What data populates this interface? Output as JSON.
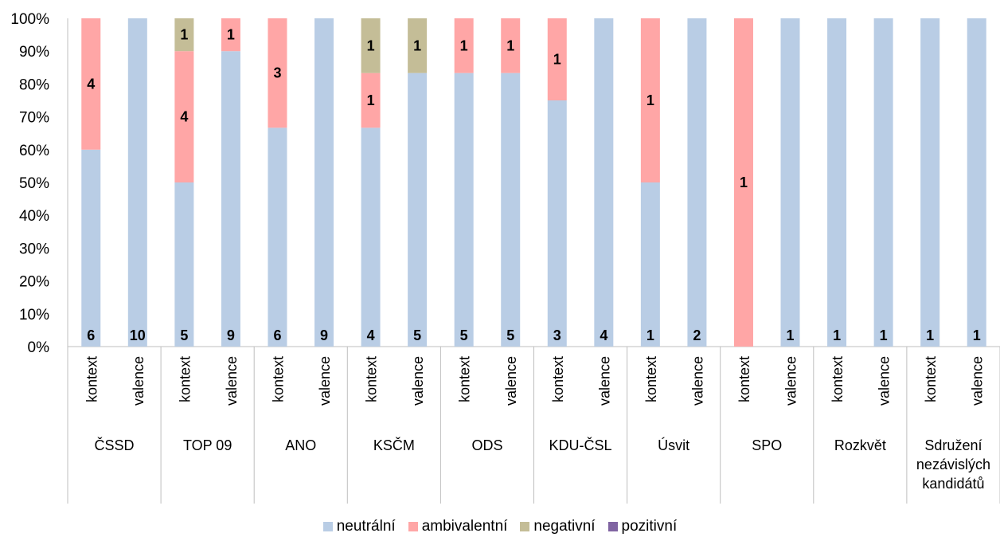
{
  "chart_data": {
    "type": "bar",
    "stacked": "percent",
    "ylim": [
      0,
      100
    ],
    "yticks": [
      "0%",
      "10%",
      "20%",
      "30%",
      "40%",
      "50%",
      "60%",
      "70%",
      "80%",
      "90%",
      "100%"
    ],
    "groups": [
      "ČSSD",
      "TOP 09",
      "ANO",
      "KSČM",
      "ODS",
      "KDU-ČSL",
      "Úsvit",
      "SPO",
      "Rozkvět",
      "Sdružení nezávislých kandidátů"
    ],
    "subcategories": [
      "kontext",
      "valence"
    ],
    "series": [
      {
        "name": "neutrální",
        "color": "#B9CDE5",
        "values": [
          6,
          10,
          5,
          9,
          6,
          9,
          4,
          5,
          5,
          5,
          3,
          4,
          1,
          2,
          0,
          1,
          1,
          1,
          1,
          1
        ]
      },
      {
        "name": "ambivalentní",
        "color": "#FFA6A6",
        "values": [
          4,
          0,
          4,
          1,
          3,
          0,
          1,
          0,
          1,
          1,
          1,
          0,
          1,
          0,
          1,
          0,
          0,
          0,
          0,
          0
        ]
      },
      {
        "name": "negativní",
        "color": "#C4BD97",
        "values": [
          0,
          0,
          1,
          0,
          0,
          0,
          1,
          1,
          0,
          0,
          0,
          0,
          0,
          0,
          0,
          0,
          0,
          0,
          0,
          0
        ]
      },
      {
        "name": "pozitivní",
        "color": "#8064A2",
        "values": [
          0,
          0,
          0,
          0,
          0,
          0,
          0,
          0,
          0,
          0,
          0,
          0,
          0,
          0,
          0,
          0,
          0,
          0,
          0,
          0
        ]
      }
    ],
    "legend_position": "bottom",
    "grid": false
  }
}
